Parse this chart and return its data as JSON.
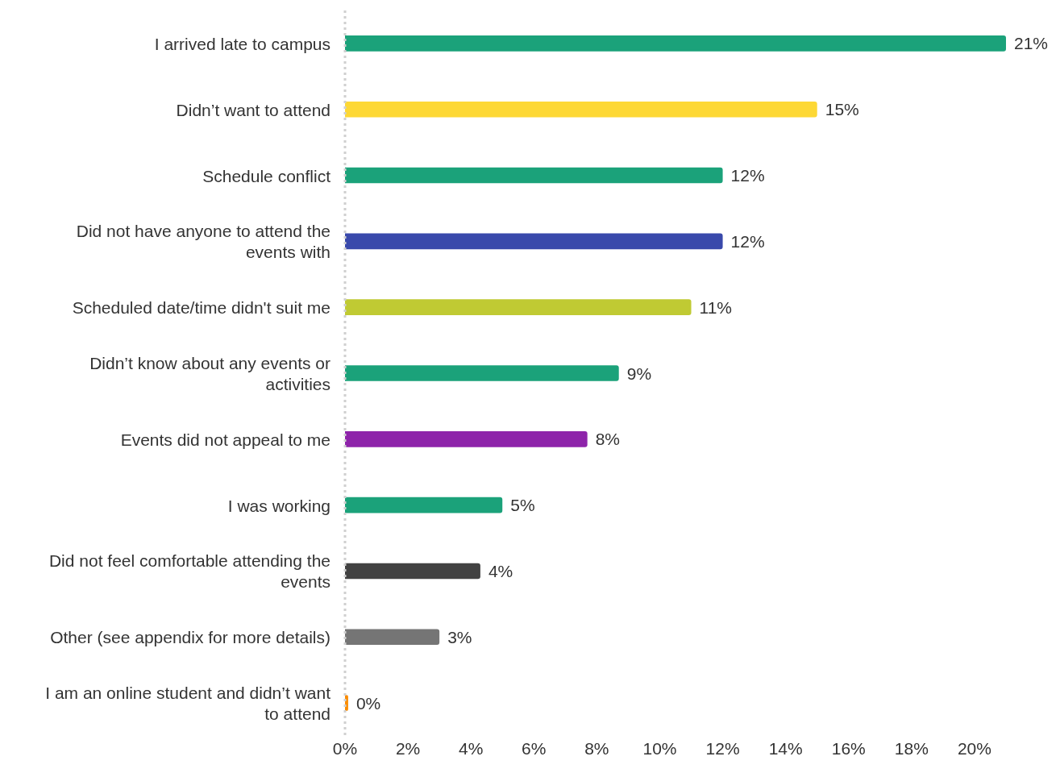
{
  "chart_data": {
    "type": "bar",
    "orientation": "horizontal",
    "categories": [
      "I arrived late to campus",
      "Didn’t want to attend",
      "Schedule conflict",
      "Did not have anyone to attend the events with",
      "Scheduled date/time didn't suit me",
      "Didn’t know about any events or activities",
      "Events did not appeal to me",
      "I was working",
      "Did not feel comfortable attending the events",
      "Other (see appendix for more details)",
      "I am an online student and didn’t want to attend"
    ],
    "values": [
      21,
      15,
      12,
      12,
      11,
      8.7,
      7.7,
      5,
      4.3,
      3,
      0.1
    ],
    "value_labels": [
      "21%",
      "15%",
      "12%",
      "12%",
      "11%",
      "9%",
      "8%",
      "5%",
      "4%",
      "3%",
      "0%"
    ],
    "colors": [
      "#1ba27a",
      "#fdd835",
      "#1ba27a",
      "#3949ab",
      "#c0ca33",
      "#1ba27a",
      "#8e24aa",
      "#1ba27a",
      "#424242",
      "#757575",
      "#fb8c00"
    ],
    "xlim": [
      0,
      21
    ],
    "xticks": [
      {
        "value": 0,
        "label": "0%"
      },
      {
        "value": 2,
        "label": "2%"
      },
      {
        "value": 4,
        "label": "4%"
      },
      {
        "value": 6,
        "label": "6%"
      },
      {
        "value": 8,
        "label": "8%"
      },
      {
        "value": 10,
        "label": "10%"
      },
      {
        "value": 12,
        "label": "12%"
      },
      {
        "value": 14,
        "label": "14%"
      },
      {
        "value": 16,
        "label": "16%"
      },
      {
        "value": 18,
        "label": "18%"
      },
      {
        "value": 20,
        "label": "20%"
      }
    ],
    "grid": false,
    "legend": false
  }
}
